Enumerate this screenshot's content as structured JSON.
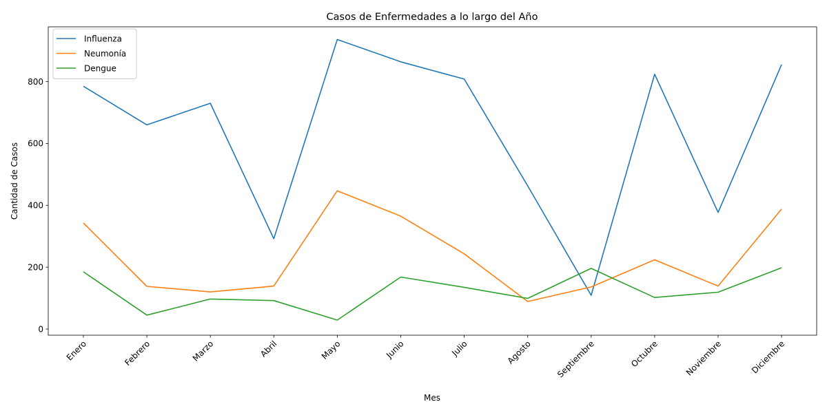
{
  "chart_data": {
    "type": "line",
    "title": "Casos de Enfermedades a lo largo del Año",
    "xlabel": "Mes",
    "ylabel": "Cantidad de Casos",
    "categories": [
      "Enero",
      "Febrero",
      "Marzo",
      "Abril",
      "Mayo",
      "Junio",
      "Julio",
      "Agosto",
      "Septiembre",
      "Octubre",
      "Noviembre",
      "Diciembre"
    ],
    "yticks": [
      0,
      200,
      400,
      600,
      800
    ],
    "ylim": [
      -20,
      977
    ],
    "grid": false,
    "legend_position": "top-left",
    "series": [
      {
        "name": "Influenza",
        "color": "#1f77b4",
        "values": [
          785,
          660,
          730,
          292,
          936,
          864,
          808,
          463,
          109,
          824,
          377,
          855
        ]
      },
      {
        "name": "Neumonía",
        "color": "#ff7f0e",
        "values": [
          343,
          138,
          120,
          139,
          447,
          365,
          243,
          89,
          136,
          224,
          139,
          388
        ]
      },
      {
        "name": "Dengue",
        "color": "#2ca02c",
        "values": [
          185,
          45,
          97,
          92,
          29,
          168,
          135,
          99,
          196,
          102,
          119,
          198
        ]
      }
    ]
  }
}
